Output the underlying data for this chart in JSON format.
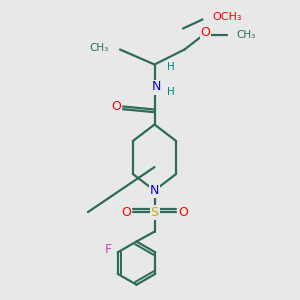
{
  "bg_color": "#e8e8e8",
  "bond_color": "#2d6b5a",
  "bond_width": 1.6,
  "atom_colors": {
    "O": "#ff0000",
    "N": "#0000ee",
    "S": "#ccaa00",
    "F": "#cc44cc",
    "H": "#008888",
    "C": "#2d6b5a"
  },
  "font_size": 8.5,
  "figsize": [
    3.0,
    3.0
  ],
  "dpi": 100,
  "xlim": [
    0,
    10
  ],
  "ylim": [
    0,
    10
  ]
}
